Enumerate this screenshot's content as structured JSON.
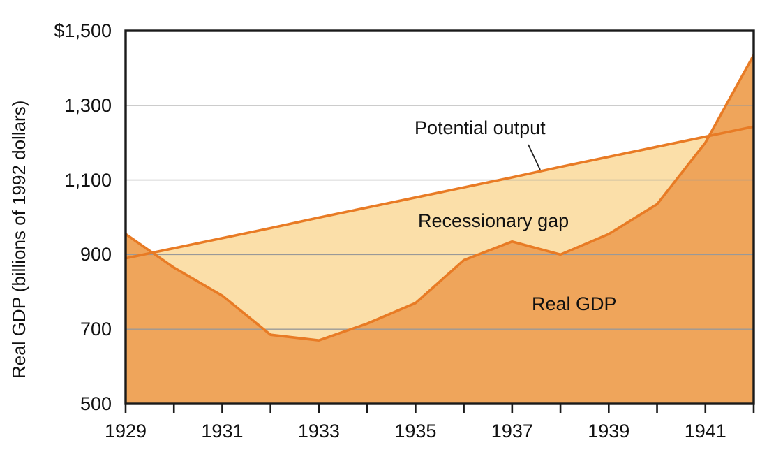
{
  "chart_data": {
    "type": "area",
    "title": "",
    "xlabel": "",
    "ylabel": "Real GDP (billions of 1992 dollars)",
    "x": [
      1929,
      1930,
      1931,
      1932,
      1933,
      1934,
      1935,
      1936,
      1937,
      1938,
      1939,
      1940,
      1941,
      1942
    ],
    "series": [
      {
        "name": "Potential output",
        "values": [
          890,
          917,
          944,
          971,
          999,
          1026,
          1053,
          1080,
          1107,
          1135,
          1162,
          1189,
          1216,
          1243
        ]
      },
      {
        "name": "Real GDP",
        "values": [
          955,
          865,
          790,
          685,
          670,
          715,
          770,
          885,
          935,
          900,
          955,
          1035,
          1200,
          1435
        ]
      }
    ],
    "xlim": [
      1929,
      1942
    ],
    "ylim": [
      500,
      1500
    ],
    "gridlines": [
      700,
      900,
      1100,
      1300
    ],
    "grid": "horizontal",
    "legend_position": "none",
    "yticks": [
      {
        "value": 1500,
        "label": "$1,500"
      },
      {
        "value": 1300,
        "label": "1,300"
      },
      {
        "value": 1100,
        "label": "1,100"
      },
      {
        "value": 900,
        "label": "900"
      },
      {
        "value": 700,
        "label": "700"
      },
      {
        "value": 500,
        "label": "500"
      }
    ],
    "xticks": [
      {
        "value": 1929,
        "label": "1929"
      },
      {
        "value": 1931,
        "label": "1931"
      },
      {
        "value": 1933,
        "label": "1933"
      },
      {
        "value": 1935,
        "label": "1935"
      },
      {
        "value": 1937,
        "label": "1937"
      },
      {
        "value": 1939,
        "label": "1939"
      },
      {
        "value": 1941,
        "label": "1941"
      }
    ],
    "annotations": {
      "potential_output": "Potential output",
      "recessionary_gap": "Recessionary gap",
      "real_gdp": "Real GDP"
    },
    "colors": {
      "line": "#E87B25",
      "gdp_fill": "#EFA55B",
      "gap_fill": "#FBDFA9",
      "gridline": "#999999",
      "border": "#1A1A1A",
      "text": "#111111"
    }
  }
}
